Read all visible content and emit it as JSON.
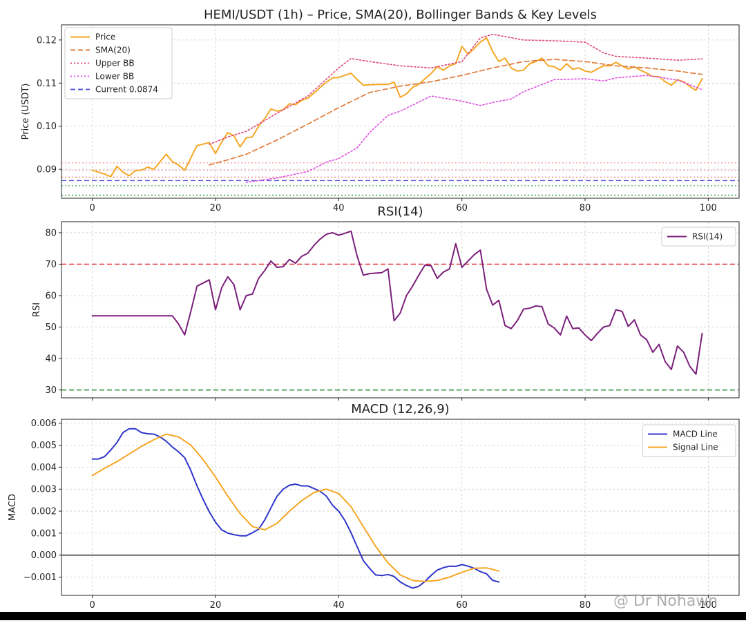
{
  "watermark": "@ Dr Nohawn",
  "chart_data": [
    {
      "type": "line",
      "title": "HEMI/USDT (1h) – Price, SMA(20), Bollinger Bands & Key Levels",
      "xlabel": "",
      "ylabel": "Price (USDT)",
      "xlim": [
        -5,
        105
      ],
      "ylim": [
        0.0833,
        0.1235
      ],
      "xticks": [
        0,
        20,
        40,
        60,
        80,
        100
      ],
      "xtick_labels": [
        "0",
        "20",
        "40",
        "60",
        "80",
        "100"
      ],
      "yticks": [
        0.09,
        0.1,
        0.11,
        0.12
      ],
      "ytick_labels": [
        "0.09",
        "0.10",
        "0.11",
        "0.12"
      ],
      "grid": true,
      "legend_position": "top-left",
      "series": [
        {
          "name": "Price",
          "color": "#f5a623",
          "style": "solid",
          "x": [
            0,
            2,
            3,
            4,
            5,
            6,
            7,
            8,
            9,
            10,
            12,
            13,
            14,
            15,
            17,
            19,
            20,
            21,
            22,
            23,
            24,
            25,
            26,
            27,
            28,
            29,
            30,
            31,
            32,
            33,
            34,
            35,
            36,
            37,
            38,
            39,
            40,
            41,
            42,
            43,
            44,
            46,
            48,
            49,
            50,
            51,
            52,
            53,
            54,
            55,
            56,
            57,
            58,
            59,
            60,
            61,
            62,
            63,
            64,
            65,
            66,
            67,
            68,
            69,
            70,
            71,
            72,
            73,
            74,
            75,
            76,
            77,
            78,
            79,
            80,
            81,
            82,
            83,
            84,
            85,
            86,
            87,
            88,
            89,
            90,
            91,
            92,
            93,
            94,
            95,
            96,
            97,
            98,
            99
          ],
          "y": [
            0.0898,
            0.0889,
            0.0883,
            0.0907,
            0.0893,
            0.0885,
            0.0897,
            0.0898,
            0.0905,
            0.09,
            0.0935,
            0.0918,
            0.091,
            0.0898,
            0.0955,
            0.0962,
            0.0937,
            0.0963,
            0.0985,
            0.0978,
            0.0952,
            0.0973,
            0.0975,
            0.1,
            0.1018,
            0.104,
            0.1035,
            0.1038,
            0.1052,
            0.105,
            0.106,
            0.1065,
            0.1077,
            0.109,
            0.1102,
            0.1112,
            0.1113,
            0.1118,
            0.1123,
            0.1108,
            0.1095,
            0.1097,
            0.1097,
            0.1102,
            0.1067,
            0.1075,
            0.109,
            0.1097,
            0.111,
            0.1122,
            0.1138,
            0.113,
            0.114,
            0.1145,
            0.1185,
            0.1167,
            0.118,
            0.1195,
            0.1205,
            0.1173,
            0.115,
            0.1158,
            0.1135,
            0.1128,
            0.113,
            0.1145,
            0.115,
            0.1158,
            0.114,
            0.1138,
            0.113,
            0.1145,
            0.1132,
            0.1135,
            0.1128,
            0.1125,
            0.1133,
            0.114,
            0.114,
            0.1148,
            0.114,
            0.1133,
            0.1138,
            0.113,
            0.1123,
            0.1115,
            0.1115,
            0.1103,
            0.1095,
            0.1108,
            0.1103,
            0.1092,
            0.1083,
            0.111
          ]
        },
        {
          "name": "SMA(20)",
          "color": "#e07b39",
          "style": "dashed",
          "x": [
            19,
            22,
            25,
            30,
            35,
            40,
            45,
            50,
            55,
            60,
            65,
            70,
            75,
            80,
            85,
            90,
            95,
            99
          ],
          "y": [
            0.091,
            0.0922,
            0.0935,
            0.0968,
            0.1005,
            0.1043,
            0.1078,
            0.1093,
            0.1103,
            0.1118,
            0.1135,
            0.115,
            0.1155,
            0.115,
            0.114,
            0.1135,
            0.1128,
            0.112
          ]
        },
        {
          "name": "Upper BB",
          "color": "#e0507a",
          "style": "dotted",
          "x": [
            19,
            22,
            25,
            30,
            35,
            40,
            42,
            45,
            50,
            55,
            60,
            63,
            65,
            70,
            75,
            80,
            83,
            85,
            90,
            95,
            99
          ],
          "y": [
            0.0958,
            0.0975,
            0.0988,
            0.103,
            0.107,
            0.1135,
            0.1157,
            0.115,
            0.114,
            0.1135,
            0.115,
            0.1205,
            0.1213,
            0.12,
            0.1198,
            0.1195,
            0.117,
            0.1162,
            0.1158,
            0.1153,
            0.1156
          ]
        },
        {
          "name": "Lower BB",
          "color": "#e055e0",
          "style": "dotted",
          "x": [
            25,
            30,
            35,
            38,
            40,
            43,
            45,
            48,
            50,
            55,
            60,
            63,
            65,
            68,
            70,
            75,
            80,
            83,
            85,
            90,
            95,
            99
          ],
          "y": [
            0.087,
            0.088,
            0.0895,
            0.0917,
            0.0925,
            0.095,
            0.0985,
            0.1025,
            0.1035,
            0.107,
            0.1058,
            0.1048,
            0.1055,
            0.1063,
            0.108,
            0.1108,
            0.111,
            0.1105,
            0.1112,
            0.1118,
            0.1107,
            0.1085
          ]
        }
      ],
      "hlines": [
        {
          "name": "Current 0.0874",
          "value": 0.0874,
          "color": "#5a55d6",
          "style": "dashed",
          "in_legend": true
        },
        {
          "value": 0.0915,
          "color": "#f3a0a0",
          "style": "dotted",
          "in_legend": false
        },
        {
          "value": 0.0898,
          "color": "#f3a0a0",
          "style": "dotted",
          "in_legend": false
        },
        {
          "value": 0.0882,
          "color": "#f08080",
          "style": "dotted",
          "in_legend": false
        },
        {
          "value": 0.0862,
          "color": "#4caf50",
          "style": "dotted",
          "in_legend": false
        },
        {
          "value": 0.084,
          "color": "#2e9e2e",
          "style": "dotted",
          "in_legend": false
        }
      ]
    },
    {
      "type": "line",
      "title": "RSI(14)",
      "xlabel": "",
      "ylabel": "RSI",
      "xlim": [
        -5,
        105
      ],
      "ylim": [
        27.5,
        83.5
      ],
      "xticks": [
        0,
        20,
        40,
        60,
        80,
        100
      ],
      "yticks": [
        30,
        40,
        50,
        60,
        70,
        80
      ],
      "ytick_labels": [
        "30",
        "40",
        "50",
        "60",
        "70",
        "80"
      ],
      "grid": true,
      "legend_position": "top-right",
      "series": [
        {
          "name": "RSI(14)",
          "color": "#7b1f7b",
          "style": "solid",
          "x": [
            0,
            13,
            14,
            15,
            16,
            17,
            19,
            20,
            21,
            22,
            23,
            24,
            25,
            26,
            27,
            28,
            29,
            30,
            31,
            32,
            33,
            34,
            35,
            36,
            37,
            38,
            39,
            40,
            41,
            42,
            43,
            44,
            45,
            47,
            48,
            49,
            50,
            51,
            52,
            53,
            54,
            55,
            56,
            57,
            58,
            59,
            60,
            61,
            62,
            63,
            64,
            65,
            66,
            67,
            68,
            69,
            70,
            71,
            72,
            73,
            74,
            75,
            76,
            77,
            78,
            79,
            80,
            81,
            82,
            83,
            84,
            85,
            86,
            87,
            88,
            89,
            90,
            91,
            92,
            93,
            94,
            95,
            96,
            97,
            98,
            99
          ],
          "y": [
            53.6,
            53.6,
            51.0,
            47.5,
            55.0,
            63.0,
            65.0,
            55.5,
            62.5,
            66.0,
            63.5,
            55.5,
            60.0,
            60.5,
            65.5,
            68.0,
            71.0,
            69.0,
            69.2,
            71.5,
            70.3,
            72.5,
            73.5,
            76.0,
            78.0,
            79.5,
            80.0,
            79.2,
            79.8,
            80.5,
            72.5,
            66.5,
            67.0,
            67.3,
            68.5,
            52.0,
            54.5,
            60.0,
            63.0,
            66.5,
            69.7,
            69.5,
            65.5,
            67.5,
            68.5,
            76.5,
            69.0,
            71.0,
            73.0,
            74.5,
            62.0,
            57.0,
            58.5,
            50.5,
            49.5,
            52.0,
            55.7,
            56.0,
            56.7,
            56.5,
            51.0,
            49.7,
            47.5,
            53.5,
            49.5,
            49.7,
            47.5,
            45.7,
            48.0,
            50.0,
            50.5,
            55.5,
            55.0,
            50.2,
            52.3,
            47.5,
            46.0,
            42.0,
            44.5,
            39.0,
            36.5,
            44.0,
            42.0,
            37.5,
            35.0,
            48.0
          ]
        }
      ],
      "hlines": [
        {
          "value": 70,
          "color": "#e02020",
          "style": "dashed",
          "in_legend": false
        },
        {
          "value": 30,
          "color": "#2a8a2a",
          "style": "dashed",
          "in_legend": false
        }
      ]
    },
    {
      "type": "line",
      "title": "MACD (12,26,9)",
      "xlabel": "",
      "ylabel": "MACD",
      "xlim": [
        -5,
        105
      ],
      "ylim": [
        -0.00183,
        0.00618
      ],
      "xticks": [
        0,
        20,
        40,
        60,
        80,
        100
      ],
      "xtick_labels": [
        "0",
        "20",
        "40",
        "60",
        "80",
        "100"
      ],
      "yticks": [
        -0.001,
        0.0,
        0.001,
        0.002,
        0.003,
        0.004,
        0.005,
        0.006
      ],
      "ytick_labels": [
        "−0.001",
        "0.000",
        "0.001",
        "0.002",
        "0.003",
        "0.004",
        "0.005",
        "0.006"
      ],
      "grid": true,
      "legend_position": "top-right",
      "series": [
        {
          "name": "MACD Line",
          "color": "#2f35c8",
          "style": "solid",
          "x": [
            0,
            1,
            2,
            3,
            4,
            5,
            6,
            7,
            8,
            9,
            10,
            11,
            12,
            13,
            14,
            15,
            16,
            17,
            18,
            19,
            20,
            21,
            22,
            23,
            24,
            25,
            26,
            27,
            28,
            29,
            30,
            31,
            32,
            33,
            34,
            35,
            36,
            37,
            38,
            39,
            40,
            41,
            42,
            43,
            44,
            45,
            46,
            47,
            48,
            49,
            50,
            51,
            52,
            53,
            54,
            55,
            56,
            57,
            58,
            59,
            60,
            61,
            62,
            63,
            64,
            65,
            66
          ],
          "y": [
            0.00437,
            0.00437,
            0.00448,
            0.00478,
            0.00512,
            0.00558,
            0.00575,
            0.00575,
            0.00557,
            0.00552,
            0.0055,
            0.00538,
            0.00518,
            0.00492,
            0.0047,
            0.00443,
            0.00385,
            0.00315,
            0.00253,
            0.00197,
            0.0015,
            0.00115,
            0.001,
            0.00093,
            0.00088,
            0.00088,
            0.00102,
            0.00118,
            0.0016,
            0.00215,
            0.00268,
            0.003,
            0.00318,
            0.00323,
            0.00315,
            0.00315,
            0.00303,
            0.0029,
            0.00268,
            0.00227,
            0.002,
            0.00158,
            0.00102,
            0.00038,
            -0.00025,
            -0.0006,
            -0.0009,
            -0.00093,
            -0.00088,
            -0.00097,
            -0.00122,
            -0.00138,
            -0.0015,
            -0.00142,
            -0.0012,
            -0.00092,
            -0.00068,
            -0.00057,
            -0.0005,
            -0.00051,
            -0.00043,
            -0.0005,
            -0.0006,
            -0.00075,
            -0.00085,
            -0.00115,
            -0.00122
          ]
        },
        {
          "name": "Signal Line",
          "color": "#f5a623",
          "style": "solid",
          "x": [
            0,
            2,
            4,
            6,
            8,
            10,
            12,
            14,
            16,
            18,
            20,
            22,
            24,
            26,
            28,
            30,
            32,
            34,
            36,
            38,
            40,
            42,
            44,
            46,
            48,
            50,
            52,
            54,
            56,
            58,
            60,
            62,
            64,
            66
          ],
          "y": [
            0.00362,
            0.00395,
            0.00425,
            0.0046,
            0.00495,
            0.00525,
            0.0055,
            0.00538,
            0.005,
            0.00435,
            0.00355,
            0.00268,
            0.0019,
            0.0013,
            0.00115,
            0.00145,
            0.002,
            0.00248,
            0.00285,
            0.003,
            0.0028,
            0.0022,
            0.0013,
            0.0004,
            -0.00035,
            -0.0009,
            -0.00115,
            -0.0012,
            -0.00115,
            -0.001,
            -0.00078,
            -0.0006,
            -0.00058,
            -0.00072
          ]
        }
      ],
      "hlines": [
        {
          "value": 0.0,
          "color": "#000000",
          "style": "solid",
          "in_legend": false
        }
      ]
    }
  ]
}
